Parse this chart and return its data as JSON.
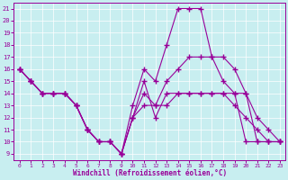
{
  "xlabel": "Windchill (Refroidissement éolien,°C)",
  "background_color": "#c8eef0",
  "line_color": "#990099",
  "xlim_min": -0.5,
  "xlim_max": 23.5,
  "ylim_min": 8.5,
  "ylim_max": 21.5,
  "xticks": [
    0,
    1,
    2,
    3,
    4,
    5,
    6,
    7,
    8,
    9,
    10,
    11,
    12,
    13,
    14,
    15,
    16,
    17,
    18,
    19,
    20,
    21,
    22,
    23
  ],
  "yticks": [
    9,
    10,
    11,
    12,
    13,
    14,
    15,
    16,
    17,
    18,
    19,
    20,
    21
  ],
  "series1": [
    16,
    15,
    14,
    14,
    14,
    13,
    11,
    10,
    10,
    9,
    12,
    15,
    12,
    14,
    14,
    14,
    14,
    14,
    14,
    14,
    14,
    10,
    10,
    10
  ],
  "series2": [
    16,
    15,
    14,
    14,
    14,
    13,
    11,
    10,
    10,
    9,
    13,
    16,
    15,
    18,
    21,
    21,
    21,
    17,
    15,
    14,
    10,
    10,
    10,
    10
  ],
  "series3": [
    16,
    15,
    14,
    14,
    14,
    13,
    11,
    10,
    10,
    9,
    12,
    14,
    13,
    15,
    16,
    17,
    17,
    17,
    17,
    16,
    14,
    12,
    11,
    10
  ],
  "series4": [
    16,
    15,
    14,
    14,
    14,
    13,
    11,
    10,
    10,
    9,
    12,
    13,
    13,
    13,
    14,
    14,
    14,
    14,
    14,
    13,
    12,
    11,
    10,
    10
  ]
}
